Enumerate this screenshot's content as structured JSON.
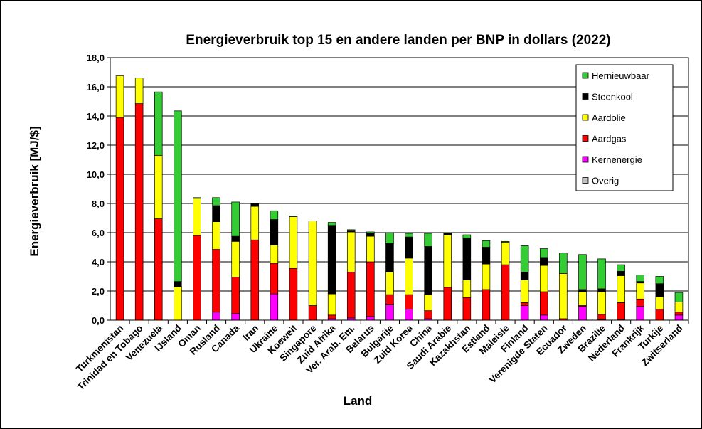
{
  "chart_data": {
    "type": "bar",
    "stacked": true,
    "title": "Energieverbruik top 15 en andere landen per BNP in dollars (2022)",
    "xlabel": "Land",
    "ylabel": "Energieverbruik  [MJ/$]",
    "ylim": [
      0,
      18
    ],
    "ytick_step": 2,
    "ytick_labels": [
      "0,0",
      "2,0",
      "4,0",
      "6,0",
      "8,0",
      "10,0",
      "12,0",
      "14,0",
      "16,0",
      "18,0"
    ],
    "grid": true,
    "legend_position": "top-right",
    "categories": [
      "Turkmenistan",
      "Trinidad en Tobago",
      "Venezuela",
      "IJsland",
      "Oman",
      "Rusland",
      "Canada",
      "Iran",
      "Ukraine",
      "Koeweit",
      "Singapore",
      "Zuid Afrika",
      "Ver. Arab. Em.",
      "Belarus",
      "Bulgarije",
      "Zuid Korea",
      "China",
      "Saudi Arabie",
      "Kazakhstan",
      "Estland",
      "Maleisie",
      "Finland",
      "Verenigde Staten",
      "Ecuador",
      "Zweden",
      "Brazilie",
      "Nederland",
      "Frankrijk",
      "Turkije",
      "Zwitserland"
    ],
    "series": [
      {
        "name": "Overig",
        "color": "#c0c0c0",
        "values": [
          0,
          0,
          0,
          0,
          0,
          0,
          0,
          0,
          0,
          0,
          0,
          0,
          0,
          0,
          0,
          0,
          0,
          0,
          0,
          0,
          0,
          0,
          0,
          0,
          0,
          0,
          0,
          0,
          0,
          0
        ]
      },
      {
        "name": "Kernenergie",
        "color": "#ff00ff",
        "values": [
          0,
          0,
          0,
          0,
          0,
          0.55,
          0.45,
          0,
          1.8,
          0,
          0,
          0.1,
          0.15,
          0.25,
          1.05,
          0.75,
          0.1,
          0,
          0,
          0,
          0,
          1.0,
          0.35,
          0,
          0.95,
          0.05,
          0.05,
          0.95,
          0,
          0.35
        ]
      },
      {
        "name": "Aardgas",
        "color": "#ff0000",
        "values": [
          13.9,
          14.85,
          6.95,
          0,
          5.8,
          4.3,
          2.5,
          5.5,
          2.1,
          3.55,
          1.0,
          0.25,
          3.15,
          3.75,
          0.7,
          1.0,
          0.55,
          2.25,
          1.55,
          2.1,
          3.8,
          0.2,
          1.6,
          0.1,
          0.05,
          0.35,
          1.15,
          0.5,
          0.75,
          0.2
        ]
      },
      {
        "name": "Aardolie",
        "color": "#ffff00",
        "values": [
          2.85,
          1.75,
          4.35,
          2.3,
          2.55,
          1.9,
          2.45,
          2.3,
          1.25,
          3.55,
          5.8,
          1.45,
          2.75,
          1.75,
          1.55,
          2.5,
          1.1,
          3.6,
          1.2,
          1.75,
          1.55,
          1.55,
          1.8,
          3.1,
          0.95,
          1.55,
          1.85,
          1.1,
          0.85,
          0.7
        ]
      },
      {
        "name": "Steenkool",
        "color": "#000000",
        "values": [
          0,
          0,
          0,
          0.35,
          0,
          1.1,
          0.35,
          0.2,
          1.75,
          0,
          0,
          4.7,
          0.1,
          0.2,
          1.95,
          1.45,
          3.3,
          0.1,
          2.85,
          1.15,
          0,
          0.55,
          0.55,
          0,
          0.15,
          0.2,
          0.3,
          0.1,
          0.9,
          0
        ]
      },
      {
        "name": "Hernieuwbaar",
        "color": "#33cc33",
        "values": [
          0,
          0,
          4.35,
          11.7,
          0.05,
          0.55,
          2.35,
          0,
          0.6,
          0.05,
          0,
          0.2,
          0.05,
          0.1,
          0.75,
          0.25,
          0.9,
          0.05,
          0.25,
          0.45,
          0.05,
          1.8,
          0.6,
          1.4,
          2.4,
          2.05,
          0.45,
          0.45,
          0.5,
          0.65
        ]
      }
    ],
    "legend_order": [
      "Hernieuwbaar",
      "Steenkool",
      "Aardolie",
      "Aardgas",
      "Kernenergie",
      "Overig"
    ]
  }
}
